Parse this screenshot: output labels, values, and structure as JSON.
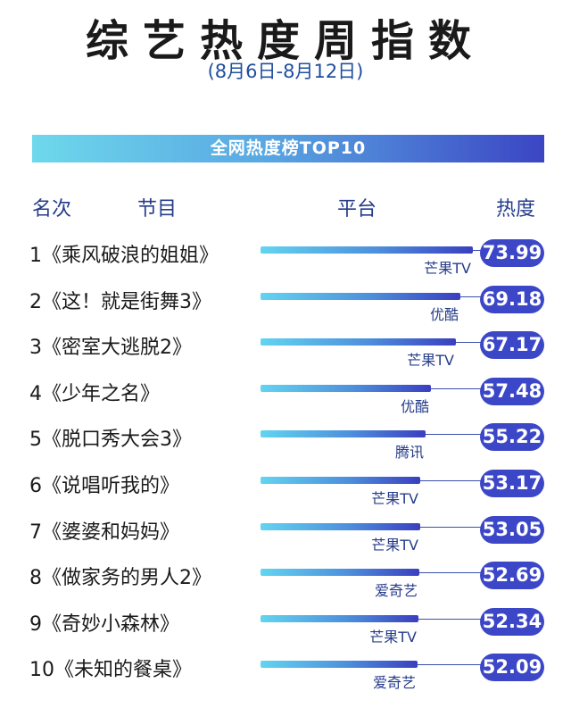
{
  "title": "综艺热度周指数",
  "subtitle": "(8月6日-8月12日)",
  "banner": "全网热度榜TOP10",
  "headers": {
    "rank": "名次",
    "program": "节目",
    "platform": "平台",
    "heat": "热度"
  },
  "colors": {
    "accent": "#3c47c8",
    "bar_start": "#62d4f0",
    "bar_end": "#3a3fbf",
    "text_blue": "#263c8a"
  },
  "chart_data": {
    "type": "bar",
    "orientation": "horizontal",
    "categories": [
      "1《乘风破浪的姐姐》",
      "2《这！就是街舞3》",
      "3《密室大逃脱2》",
      "4《少年之名》",
      "5《脱口秀大会3》",
      "6《说唱听我的》",
      "7《婆婆和妈妈》",
      "8《做家务的男人2》",
      "9《奇妙小森林》",
      "10《未知的餐桌》"
    ],
    "platforms": [
      "芒果TV",
      "优酷",
      "芒果TV",
      "优酷",
      "腾讯",
      "芒果TV",
      "芒果TV",
      "爱奇艺",
      "芒果TV",
      "爱奇艺"
    ],
    "values": [
      73.99,
      69.18,
      67.17,
      57.48,
      55.22,
      53.17,
      53.05,
      52.69,
      52.34,
      52.09
    ]
  }
}
